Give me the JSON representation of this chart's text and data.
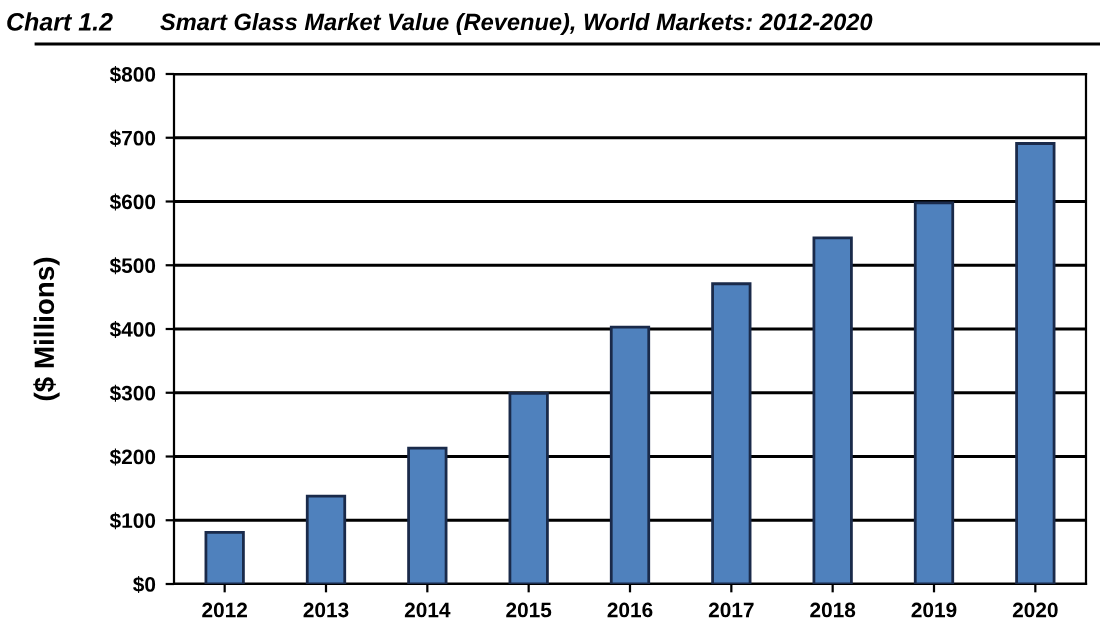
{
  "chart_data": {
    "type": "bar",
    "title": "Smart Glass Market Value (Revenue), World Markets: 2012-2020",
    "annotations": [
      "Chart 1.2"
    ],
    "ylabel": "($ Millions)",
    "categories": [
      "2012",
      "2013",
      "2014",
      "2015",
      "2016",
      "2017",
      "2018",
      "2019",
      "2020"
    ],
    "values": [
      81,
      138,
      213,
      299,
      403,
      471,
      543,
      598,
      691
    ],
    "color": "#4f81bd",
    "ylim": [
      0,
      800
    ],
    "yticks": [
      {
        "value": 0,
        "label": "$0"
      },
      {
        "value": 100,
        "label": "$100"
      },
      {
        "value": 200,
        "label": "$200"
      },
      {
        "value": 300,
        "label": "$300"
      },
      {
        "value": 400,
        "label": "$400"
      },
      {
        "value": 500,
        "label": "$500"
      },
      {
        "value": 600,
        "label": "$600"
      },
      {
        "value": 700,
        "label": "$700"
      },
      {
        "value": 800,
        "label": "$800"
      }
    ],
    "grid": "y",
    "legend": false
  }
}
